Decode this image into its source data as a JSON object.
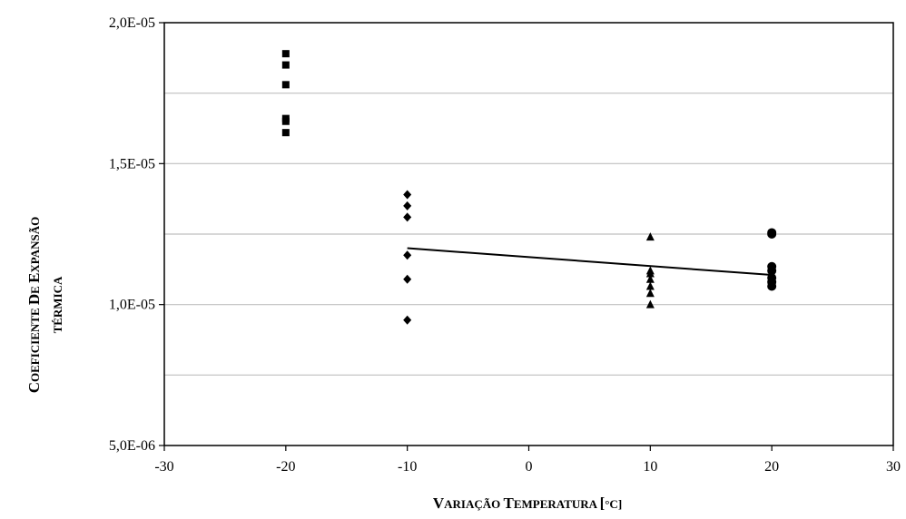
{
  "chart_data": {
    "type": "scatter",
    "title": "",
    "xlabel": "Variação Temperatura [°C]",
    "ylabel_line1": "Coeficiente de expansão",
    "ylabel_line2": "térmica",
    "xlim": [
      -30,
      30
    ],
    "ylim": [
      5e-06,
      2e-05
    ],
    "x_ticks": [
      -30,
      -20,
      -10,
      0,
      10,
      20,
      30
    ],
    "x_tick_labels": [
      "-30",
      "-20",
      "-10",
      "0",
      "10",
      "20",
      "30"
    ],
    "y_ticks": [
      5e-06,
      1e-05,
      1.5e-05,
      2e-05
    ],
    "y_tick_labels": [
      "5,0E-06",
      "1,0E-05",
      "1,5E-05",
      "2,0E-05"
    ],
    "gridlines_y": [
      7.5e-06,
      1e-05,
      1.25e-05,
      1.5e-05,
      1.75e-05
    ],
    "grid_color": "#bfbfbf",
    "series": [
      {
        "marker": "square",
        "x": -20,
        "values": [
          1.61e-05,
          1.65e-05,
          1.66e-05,
          1.78e-05,
          1.85e-05,
          1.89e-05
        ]
      },
      {
        "marker": "diamond",
        "x": -10,
        "values": [
          9.45e-06,
          1.09e-05,
          1.175e-05,
          1.31e-05,
          1.35e-05,
          1.39e-05
        ]
      },
      {
        "marker": "triangle",
        "x": 10,
        "values": [
          1e-05,
          1.04e-05,
          1.065e-05,
          1.09e-05,
          1.11e-05,
          1.12e-05,
          1.24e-05
        ]
      },
      {
        "marker": "circle",
        "x": 20,
        "values": [
          1.065e-05,
          1.08e-05,
          1.095e-05,
          1.12e-05,
          1.135e-05,
          1.25e-05,
          1.255e-05
        ]
      }
    ],
    "trendline": {
      "x": [
        -10,
        20
      ],
      "y": [
        1.2e-05,
        1.105e-05
      ]
    }
  }
}
